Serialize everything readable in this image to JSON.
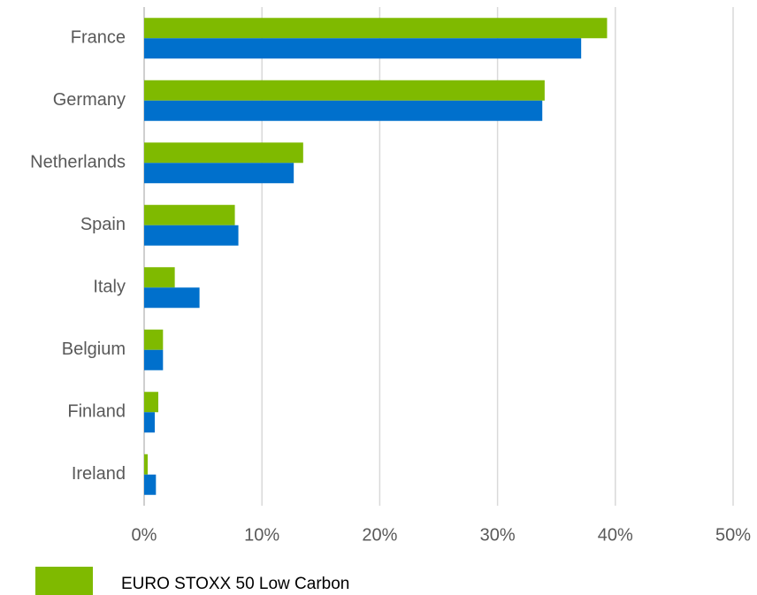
{
  "chart_data": {
    "type": "hbar",
    "categories": [
      "France",
      "Germany",
      "Netherlands",
      "Spain",
      "Italy",
      "Belgium",
      "Finland",
      "Ireland"
    ],
    "series": [
      {
        "name": "EURO STOXX 50 Low Carbon",
        "color": "#7fba00",
        "values": [
          39.3,
          34.0,
          13.5,
          7.7,
          2.6,
          1.6,
          1.2,
          0.3
        ]
      },
      {
        "color": "#0070cc",
        "values": [
          37.1,
          33.8,
          12.7,
          8.0,
          4.7,
          1.6,
          0.9,
          1.0
        ]
      }
    ],
    "xlim": [
      0,
      50
    ],
    "xticks": [
      {
        "value": 0,
        "label": "0%"
      },
      {
        "value": 10,
        "label": "10%"
      },
      {
        "value": 20,
        "label": "20%"
      },
      {
        "value": 30,
        "label": "30%"
      },
      {
        "value": 40,
        "label": "40%"
      },
      {
        "value": 50,
        "label": "50%"
      }
    ],
    "grid": true
  }
}
